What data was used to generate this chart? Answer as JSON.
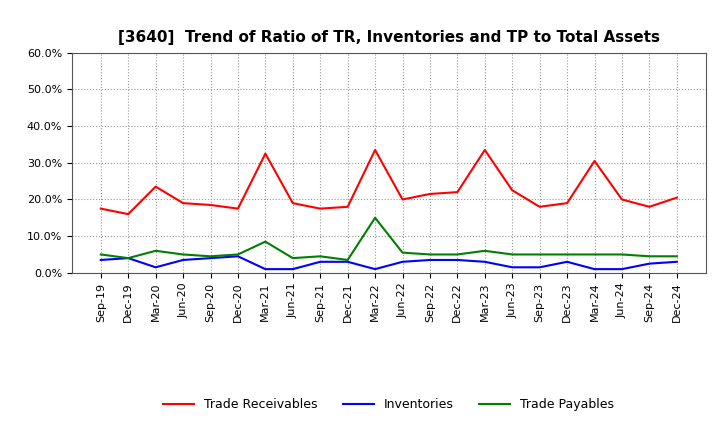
{
  "title": "[3640]  Trend of Ratio of TR, Inventories and TP to Total Assets",
  "labels": [
    "Sep-19",
    "Dec-19",
    "Mar-20",
    "Jun-20",
    "Sep-20",
    "Dec-20",
    "Mar-21",
    "Jun-21",
    "Sep-21",
    "Dec-21",
    "Mar-22",
    "Jun-22",
    "Sep-22",
    "Dec-22",
    "Mar-23",
    "Jun-23",
    "Sep-23",
    "Dec-23",
    "Mar-24",
    "Jun-24",
    "Sep-24",
    "Dec-24"
  ],
  "trade_receivables": [
    17.5,
    16.0,
    23.5,
    19.0,
    18.5,
    17.5,
    32.5,
    19.0,
    17.5,
    18.0,
    33.5,
    20.0,
    21.5,
    22.0,
    33.5,
    22.5,
    18.0,
    19.0,
    30.5,
    20.0,
    18.0,
    20.5
  ],
  "inventories": [
    3.5,
    4.0,
    1.5,
    3.5,
    4.0,
    4.5,
    1.0,
    1.0,
    3.0,
    3.0,
    1.0,
    3.0,
    3.5,
    3.5,
    3.0,
    1.5,
    1.5,
    3.0,
    1.0,
    1.0,
    2.5,
    3.0
  ],
  "trade_payables": [
    5.0,
    4.0,
    6.0,
    5.0,
    4.5,
    5.0,
    8.5,
    4.0,
    4.5,
    3.5,
    15.0,
    5.5,
    5.0,
    5.0,
    6.0,
    5.0,
    5.0,
    5.0,
    5.0,
    5.0,
    4.5,
    4.5
  ],
  "tr_color": "#FF0000",
  "inv_color": "#0000FF",
  "tp_color": "#008000",
  "ylim": [
    0,
    60
  ],
  "yticks": [
    0,
    10,
    20,
    30,
    40,
    50,
    60
  ],
  "background_color": "#FFFFFF",
  "grid_color": "#999999",
  "title_fontsize": 11,
  "tick_fontsize": 8,
  "legend_fontsize": 9
}
